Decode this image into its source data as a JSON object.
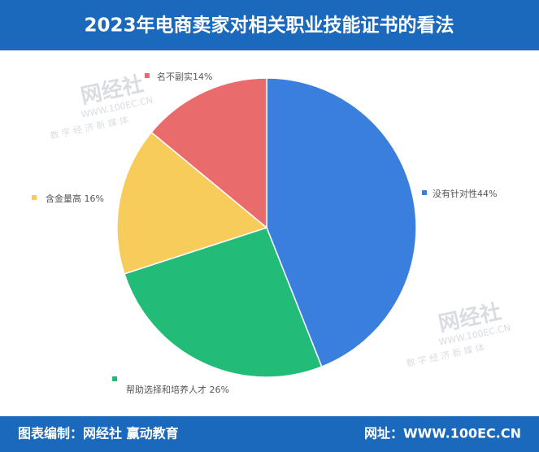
{
  "chart_data": {
    "type": "pie",
    "title": "2023年电商卖家对相关职业技能证书的看法",
    "categories": [
      "没有针对性44%",
      "帮助选择和培养人才 26%",
      "含金量高 16%",
      "名不副实14%"
    ],
    "values": [
      44,
      26,
      16,
      14
    ],
    "colors": [
      "#3a7fdd",
      "#22bb77",
      "#f8cc5a",
      "#ea6b6b"
    ]
  },
  "watermark": {
    "brand": "网经社",
    "url": "WWW.100EC.CN",
    "slogan": "数 字 经 济 新 媒 体"
  },
  "footer": {
    "credit": "图表编制：网经社 赢动教育",
    "site": "网址：WWW.100EC.CN"
  }
}
